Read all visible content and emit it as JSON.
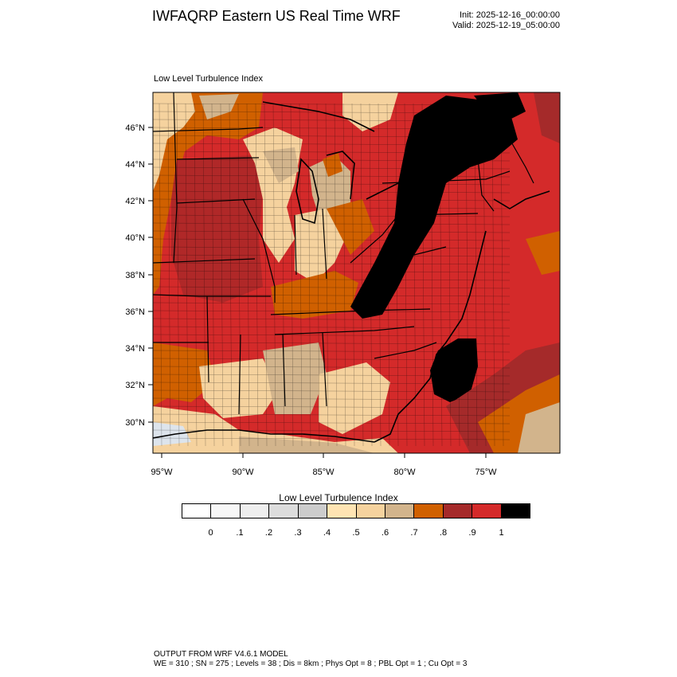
{
  "title": "IWFAQRP Eastern US Real Time WRF",
  "init": "Init: 2025-12-16_00:00:00",
  "valid": "Valid: 2025-12-19_05:00:00",
  "panel_label": "Low Level Turbulence Index",
  "lat_labels": [
    "46°N",
    "44°N",
    "42°N",
    "40°N",
    "38°N",
    "36°N",
    "34°N",
    "32°N",
    "30°N"
  ],
  "lon_labels": [
    "95°W",
    "90°W",
    "85°W",
    "80°W",
    "75°W"
  ],
  "colorbar": {
    "title": "Low Level Turbulence Index",
    "labels": [
      "0",
      ".1",
      ".2",
      ".3",
      ".4",
      ".5",
      ".6",
      ".7",
      ".8",
      ".9",
      "1"
    ],
    "colors": [
      "#ffffff",
      "#f7f7f7",
      "#eeeeee",
      "#dcdcdc",
      "#cccccc",
      "#ffe4b3",
      "#f5d29e",
      "#d2b48c",
      "#d06000",
      "#a52a2a",
      "#d42a2a",
      "#000000"
    ]
  },
  "field_colors": {
    "water": "#dde4ec",
    "light": "#f5d29e",
    "tan": "#d2b48c",
    "orange": "#d06000",
    "brown_red": "#a52a2a",
    "red": "#d42a2a",
    "black": "#000000"
  },
  "footer": {
    "line1": "OUTPUT FROM WRF V4.6.1 MODEL",
    "line2": "WE = 310 ; SN = 275 ; Levels = 38 ; Dis = 8km ; Phys Opt = 8 ; PBL Opt = 1 ; Cu Opt = 3"
  }
}
